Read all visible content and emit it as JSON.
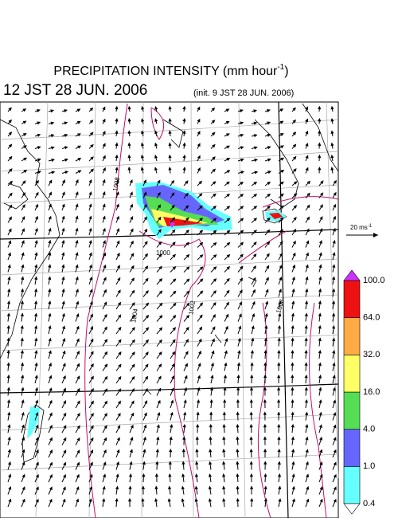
{
  "header": {
    "title": "PRECIPITATION INTENSITY (mm hour",
    "title_sup": "-1",
    "title_end": ")",
    "valid_time": "12 JST 28 JUN. 2006",
    "init_time": "(init. 9 JST 28 JUN. 2006)"
  },
  "wind_scale": {
    "label": "20 ms",
    "sup": "-1"
  },
  "colorbar": {
    "levels": [
      0.4,
      {
        "value": 1,
        "label": "1.0"
      },
      {
        "value": 4,
        "label": "4.0"
      },
      {
        "value": 16,
        "label": "16.0"
      },
      {
        "value": 32,
        "label": "32.0"
      },
      {
        "value": 64,
        "label": "64.0"
      },
      {
        "value": 100,
        "label": "100.0"
      }
    ],
    "colors": [
      "#66ffff",
      "#6666ff",
      "#55dd55",
      "#ffff66",
      "#ffaa44",
      "#ee1111"
    ],
    "over_color": "#cc33ff",
    "under_color": "#ffffff"
  },
  "contour_labels": [
    1008,
    1000,
    1004,
    1002,
    1008
  ]
}
